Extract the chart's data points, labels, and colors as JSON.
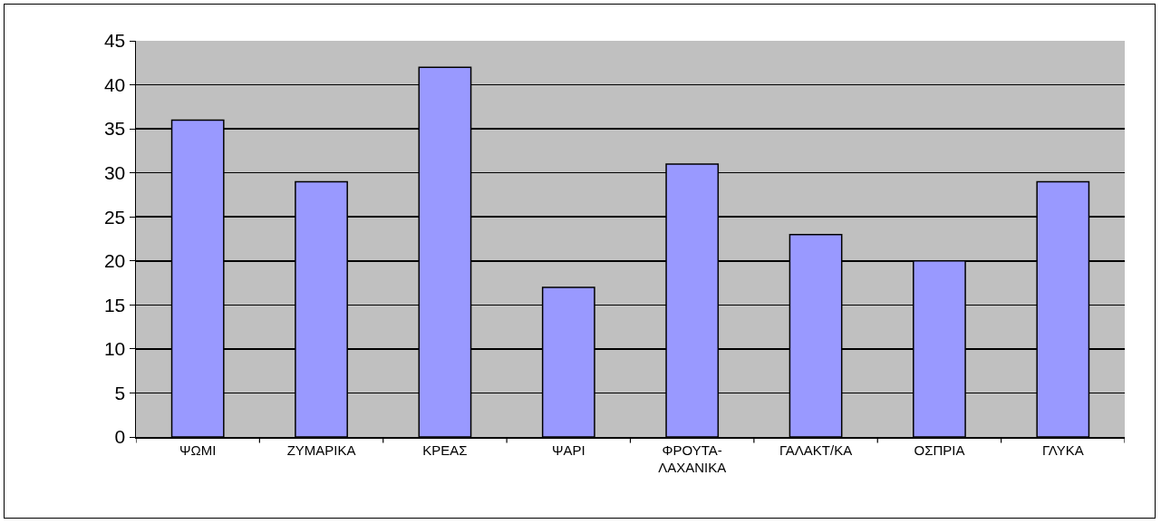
{
  "chart_data": {
    "type": "bar",
    "categories": [
      "ΨΩΜΙ",
      "ΖΥΜΑΡΙΚΑ",
      "ΚΡΕΑΣ",
      "ΨΑΡΙ",
      "ΦΡΟΥΤΑ-ΛΑΧΑΝΙΚΑ",
      "ΓΑΛΑΚΤ/ΚΑ",
      "ΟΣΠΡΙΑ",
      "ΓΛΥΚΑ"
    ],
    "values": [
      36,
      29,
      42,
      17,
      31,
      23,
      20,
      29
    ],
    "color": "#9999ff",
    "ylim": [
      0,
      45
    ],
    "yticks": [
      0,
      5,
      10,
      15,
      20,
      25,
      30,
      35,
      40,
      45
    ],
    "grid": "y"
  }
}
